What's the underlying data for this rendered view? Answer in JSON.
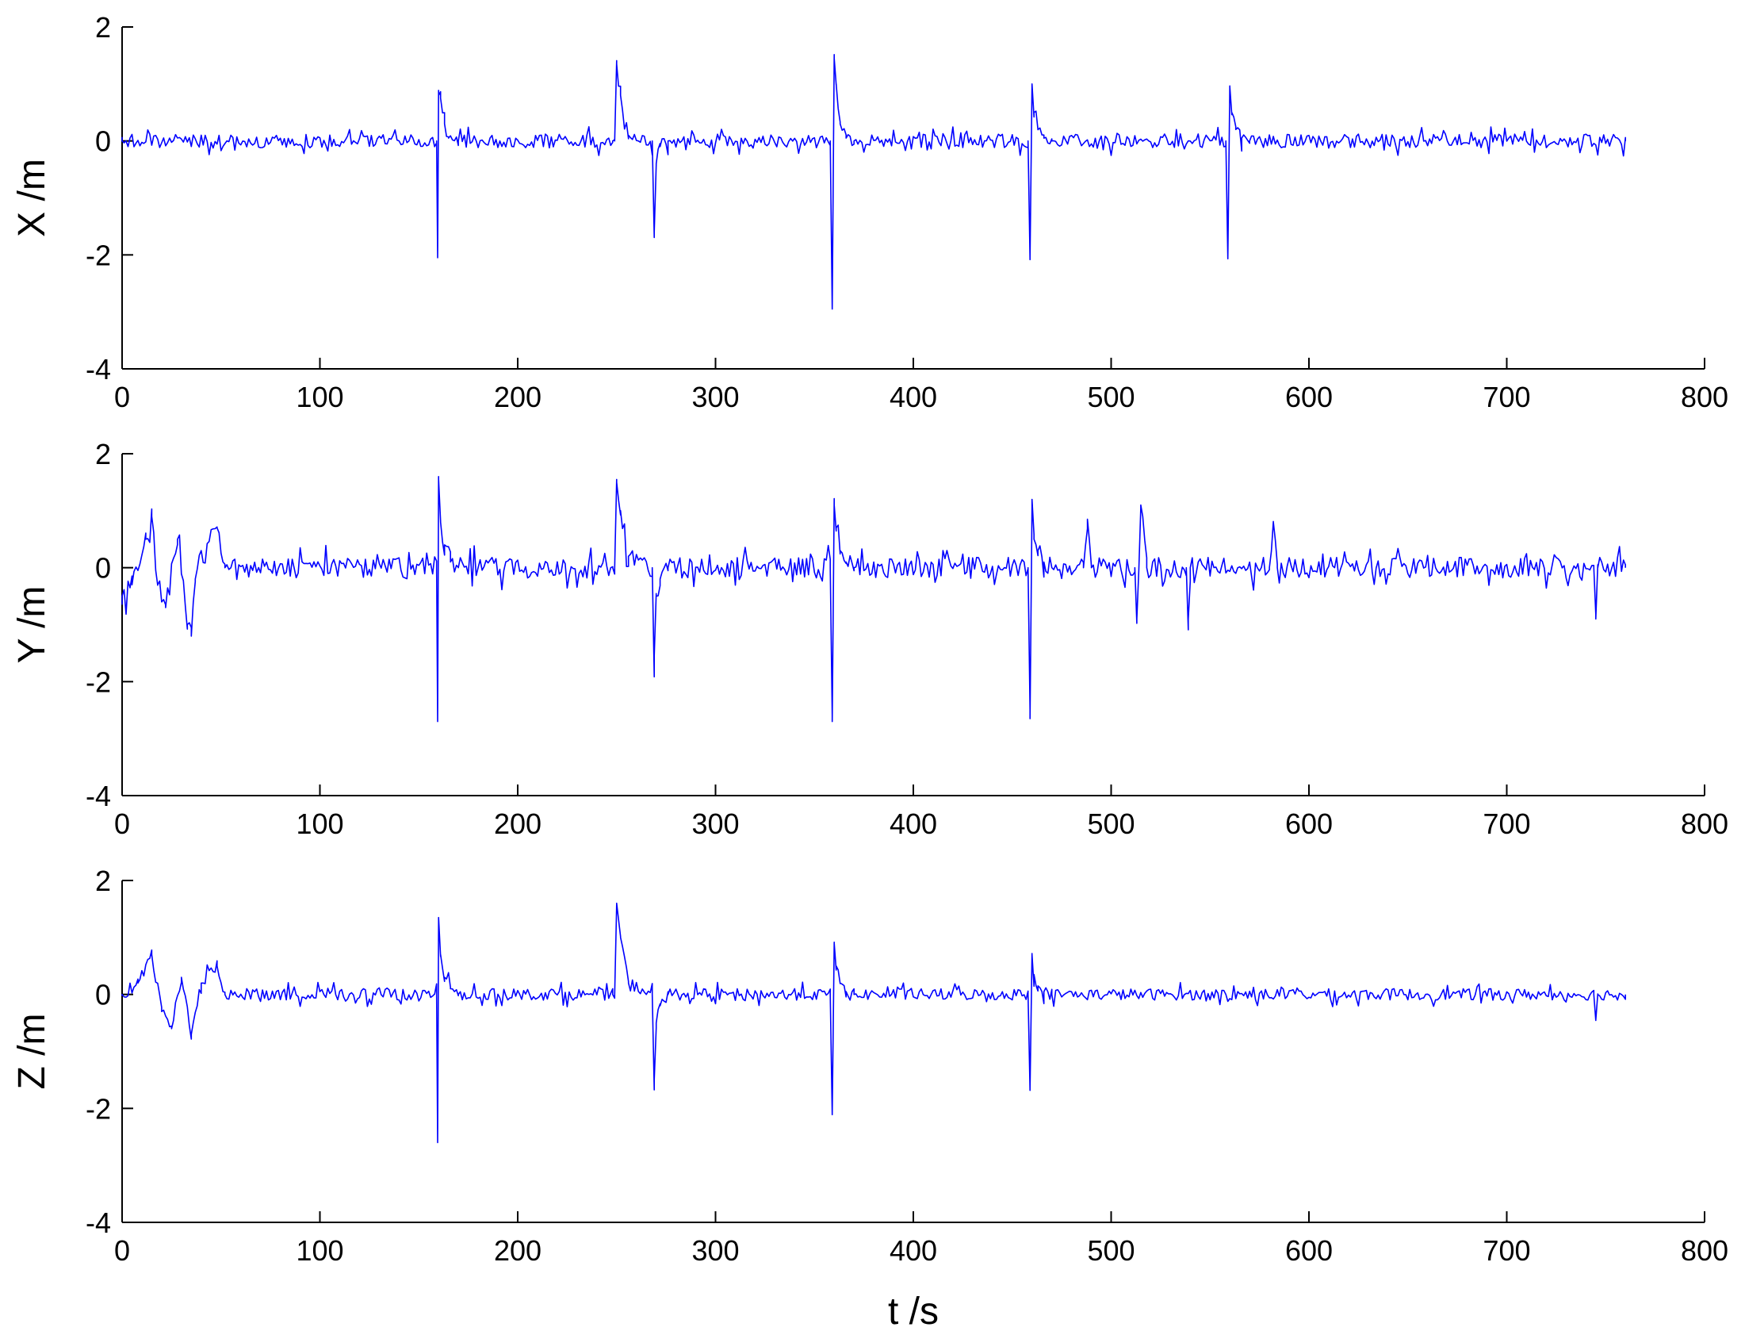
{
  "chart_data": [
    {
      "type": "line",
      "ylabel": "X /m",
      "xlabel": "",
      "xlim": [
        0,
        800
      ],
      "ylim": [
        -4,
        2
      ],
      "xticks": [
        "0",
        "100",
        "200",
        "300",
        "400",
        "500",
        "600",
        "700",
        "800"
      ],
      "yticks": [
        "2",
        "0",
        "-2",
        "-4"
      ],
      "grid": false,
      "series": [
        {
          "color": "#0000ff",
          "x": [
            0,
            159,
            159.5,
            160,
            161,
            163,
            165,
            170,
            248,
            249,
            250,
            252,
            256,
            268,
            269,
            270,
            272,
            276,
            358,
            359,
            360,
            361,
            363,
            366,
            370,
            458,
            459,
            460,
            461,
            463,
            466,
            470,
            558,
            559,
            560,
            561,
            563,
            566,
            570,
            760
          ],
          "y": [
            0,
            0,
            -2.05,
            0.8,
            0.75,
            0.3,
            0.05,
            0,
            0,
            0,
            1.35,
            0.8,
            0.1,
            0,
            -1.6,
            -0.4,
            -0.1,
            0,
            0,
            -2.95,
            1.45,
            1.0,
            0.3,
            0.05,
            0,
            0,
            -2.05,
            1.0,
            0.5,
            0.2,
            0.05,
            0,
            0,
            -2.05,
            0.95,
            0.5,
            0.2,
            0.05,
            0,
            0
          ],
          "noise_amplitude": 0.12
        }
      ]
    },
    {
      "type": "line",
      "ylabel": "Y /m",
      "xlabel": "",
      "xlim": [
        0,
        800
      ],
      "ylim": [
        -4,
        2
      ],
      "xticks": [
        "0",
        "100",
        "200",
        "300",
        "400",
        "500",
        "600",
        "700",
        "800"
      ],
      "yticks": [
        "2",
        "0",
        "-2",
        "-4"
      ],
      "grid": false,
      "series": [
        {
          "color": "#0000ff",
          "x": [
            0,
            5,
            12,
            15,
            18,
            22,
            28,
            33,
            35,
            37,
            40,
            48,
            52,
            159,
            159.5,
            160,
            161,
            163,
            166,
            170,
            248,
            249,
            250,
            252,
            256,
            268,
            269,
            270,
            272,
            276,
            358,
            359,
            360,
            361,
            363,
            366,
            370,
            458,
            459,
            460,
            461,
            463,
            466,
            470,
            486,
            488,
            490,
            512,
            513,
            515,
            518,
            538,
            539,
            540,
            580,
            582,
            584,
            744,
            745,
            746,
            760
          ],
          "y": [
            -0.5,
            -0.3,
            0.5,
            0.9,
            -0.3,
            -0.7,
            0.5,
            -1.0,
            -1.2,
            -0.2,
            0.3,
            0.7,
            0,
            0,
            -2.7,
            1.55,
            0.8,
            0.4,
            0.1,
            0,
            0,
            0,
            1.5,
            1.0,
            0.2,
            0,
            -1.55,
            -0.5,
            -0.2,
            0,
            0,
            -2.7,
            1.1,
            0.7,
            0.3,
            0.1,
            0,
            0,
            -2.65,
            1.2,
            0.5,
            0.3,
            0.1,
            0,
            0,
            0.85,
            0,
            0,
            -0.9,
            1.1,
            0,
            0,
            -0.9,
            0,
            0,
            0.8,
            0,
            0,
            -0.9,
            0,
            0
          ],
          "noise_amplitude": 0.18
        }
      ]
    },
    {
      "type": "line",
      "ylabel": "Z /m",
      "xlabel": "t /s",
      "xlim": [
        0,
        800
      ],
      "ylim": [
        -4,
        2
      ],
      "xticks": [
        "0",
        "100",
        "200",
        "300",
        "400",
        "500",
        "600",
        "700",
        "800"
      ],
      "yticks": [
        "2",
        "0",
        "-2",
        "-4"
      ],
      "grid": false,
      "series": [
        {
          "color": "#0000ff",
          "x": [
            0,
            8,
            15,
            20,
            25,
            30,
            35,
            40,
            48,
            52,
            159,
            159.5,
            160,
            161,
            163,
            166,
            170,
            248,
            249,
            250,
            252,
            256,
            268,
            269,
            270,
            272,
            276,
            358,
            359,
            360,
            361,
            363,
            366,
            370,
            458,
            459,
            460,
            461,
            463,
            466,
            470,
            744,
            745,
            746,
            760
          ],
          "y": [
            0,
            0.2,
            0.7,
            -0.3,
            -0.6,
            0.3,
            -0.7,
            0.2,
            0.5,
            0,
            0,
            -2.6,
            1.35,
            0.7,
            0.3,
            0.1,
            0,
            0,
            0,
            1.6,
            1.0,
            0.2,
            0,
            -1.5,
            -0.5,
            -0.2,
            0,
            0,
            -2.1,
            0.9,
            0.5,
            0.2,
            0.05,
            0,
            0,
            -1.65,
            0.7,
            0.35,
            0.15,
            0.05,
            0,
            0,
            -0.45,
            0,
            0
          ],
          "noise_amplitude": 0.1
        }
      ]
    }
  ]
}
